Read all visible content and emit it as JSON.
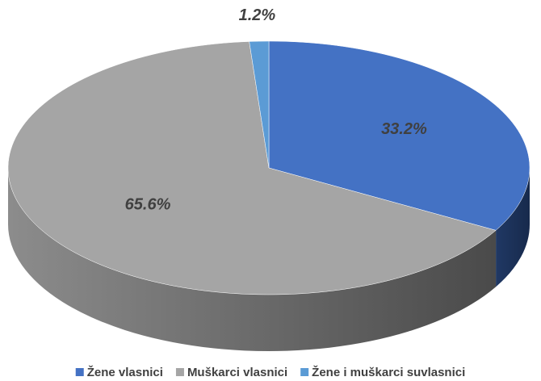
{
  "chart_data": {
    "type": "pie",
    "categories": [
      "Žene vlasnici",
      "Muškarci vlasnici",
      "Žene i muškarci suvlasnici"
    ],
    "values": [
      33.2,
      65.6,
      1.2
    ],
    "value_labels": [
      "33.2%",
      "65.6%",
      "1.2%"
    ],
    "colors": [
      "#4472c4",
      "#a5a5a5",
      "#5b9bd5"
    ],
    "legend": "bottom"
  }
}
